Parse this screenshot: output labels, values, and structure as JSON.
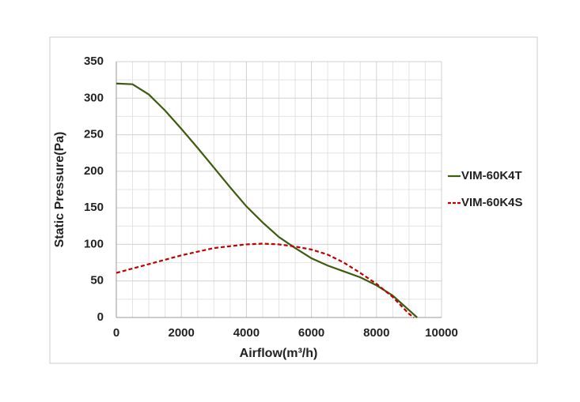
{
  "chart_data": {
    "type": "line",
    "xlabel": "Airflow(m³/h)",
    "ylabel": "Static Pressure(Pa)",
    "xlim": [
      0,
      10000
    ],
    "xticks": [
      0,
      2000,
      4000,
      6000,
      8000,
      10000
    ],
    "ylim": [
      0,
      350
    ],
    "yticks": [
      0,
      50,
      100,
      150,
      200,
      250,
      300,
      350
    ],
    "grid": true,
    "legend": "right",
    "series": [
      {
        "name": "VIM-60K4T",
        "color": "#3d5c0e",
        "dash": false,
        "x": [
          0,
          500,
          1000,
          1500,
          2000,
          2500,
          3000,
          3500,
          4000,
          4500,
          5000,
          5500,
          6000,
          6500,
          7000,
          7500,
          8000,
          8500,
          9000,
          9250
        ],
        "values": [
          320,
          319,
          305,
          283,
          258,
          232,
          205,
          178,
          152,
          130,
          110,
          95,
          81,
          71,
          63,
          55,
          44,
          30,
          10,
          0
        ]
      },
      {
        "name": "VIM-60K4S",
        "color": "#c00000",
        "dash": true,
        "x": [
          0,
          1000,
          2000,
          3000,
          4000,
          4500,
          5000,
          5500,
          6000,
          6500,
          7000,
          7500,
          8000,
          8500,
          9000,
          9150
        ],
        "values": [
          61,
          73,
          85,
          95,
          100,
          101,
          100,
          97,
          93,
          86,
          75,
          61,
          46,
          28,
          5,
          0
        ]
      }
    ]
  }
}
